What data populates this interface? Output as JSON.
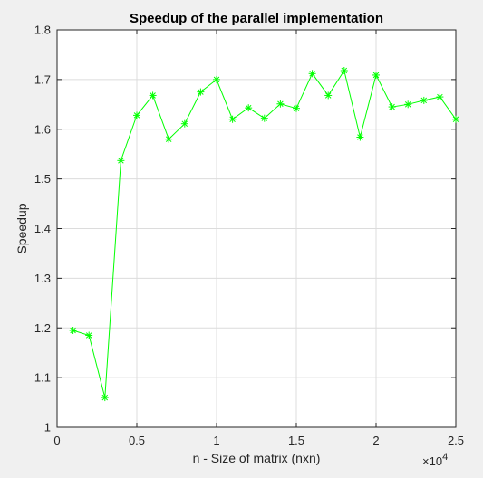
{
  "chart_data": {
    "type": "line",
    "title": "Speedup of the parallel implementation",
    "xlabel": "n - Size of matrix (nxn)",
    "ylabel": "Speedup",
    "x_exponent_base": "×10",
    "x_exponent_power": "4",
    "xlim": [
      0,
      25000
    ],
    "ylim": [
      1,
      1.8
    ],
    "x_ticks": [
      0,
      5000,
      10000,
      15000,
      20000,
      25000
    ],
    "x_tick_labels": [
      "0",
      "0.5",
      "1",
      "1.5",
      "2",
      "2.5"
    ],
    "y_ticks": [
      1,
      1.1,
      1.2,
      1.3,
      1.4,
      1.5,
      1.6,
      1.7,
      1.8
    ],
    "y_tick_labels": [
      "1",
      "1.1",
      "1.2",
      "1.3",
      "1.4",
      "1.5",
      "1.6",
      "1.7",
      "1.8"
    ],
    "grid": true,
    "legend": "none",
    "series": [
      {
        "color": "#00ff00",
        "marker": "asterisk",
        "x": [
          1000,
          2000,
          3000,
          4000,
          5000,
          6000,
          7000,
          8000,
          9000,
          10000,
          11000,
          12000,
          13000,
          14000,
          15000,
          16000,
          17000,
          18000,
          19000,
          20000,
          21000,
          22000,
          23000,
          24000,
          25000
        ],
        "y": [
          1.195,
          1.185,
          1.06,
          1.537,
          1.628,
          1.668,
          1.58,
          1.611,
          1.675,
          1.7,
          1.62,
          1.643,
          1.622,
          1.651,
          1.642,
          1.712,
          1.668,
          1.718,
          1.584,
          1.709,
          1.645,
          1.65,
          1.658,
          1.665,
          1.62
        ]
      }
    ]
  }
}
